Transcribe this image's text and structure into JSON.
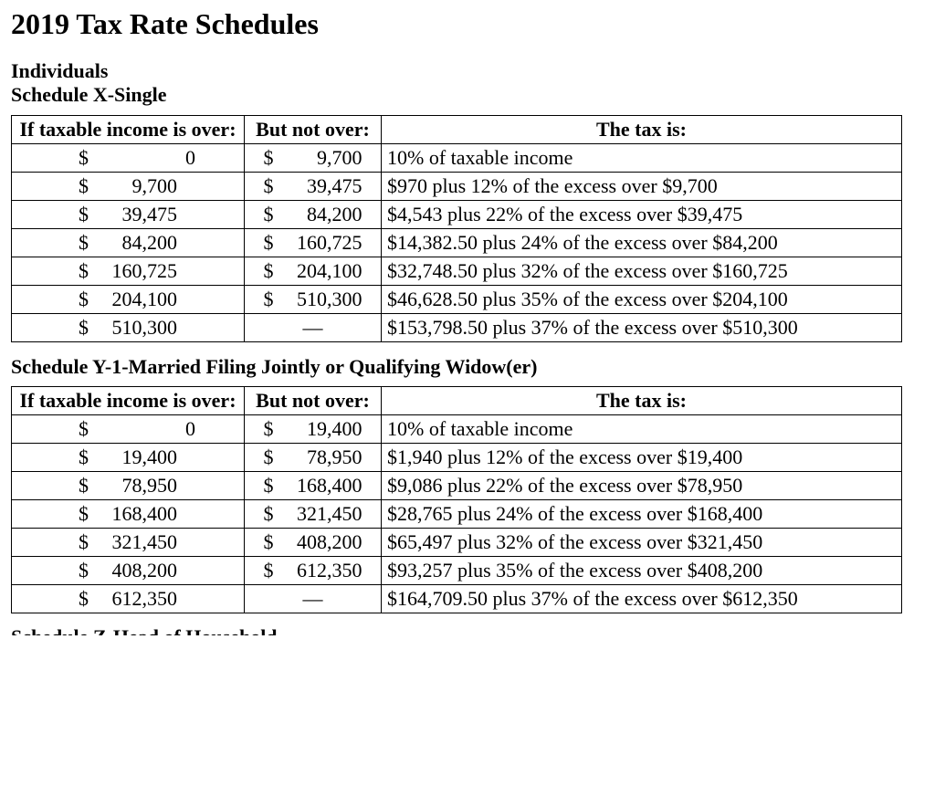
{
  "title": "2019 Tax Rate Schedules",
  "section1": {
    "line1": "Individuals",
    "line2": "Schedule X-Single"
  },
  "headers": {
    "over": "If taxable income is over:",
    "notover": "But not over:",
    "tax": "The tax is:"
  },
  "tableX": {
    "rows": [
      {
        "over": "$         0",
        "notover": "$   9,700",
        "tax": "10% of taxable income"
      },
      {
        "over": "$   9,700",
        "notover": "$ 39,475",
        "tax": "$970 plus 12% of the excess over $9,700"
      },
      {
        "over": "$ 39,475",
        "notover": "$ 84,200",
        "tax": "$4,543 plus 22% of the excess over $39,475"
      },
      {
        "over": "$ 84,200",
        "notover": "$160,725",
        "tax": "$14,382.50 plus 24% of the excess over $84,200"
      },
      {
        "over": "$160,725",
        "notover": "$204,100",
        "tax": "$32,748.50 plus 32% of the excess over $160,725"
      },
      {
        "over": "$204,100",
        "notover": "$510,300",
        "tax": "$46,628.50 plus 35% of the excess over $204,100"
      },
      {
        "over": "$510,300",
        "notover": "—",
        "tax": "$153,798.50 plus 37% of the excess over $510,300"
      }
    ]
  },
  "section2": {
    "line": "Schedule Y-1-Married Filing Jointly or Qualifying Widow(er)"
  },
  "tableY1": {
    "rows": [
      {
        "over": "$         0",
        "notover": "$ 19,400",
        "tax": "10% of taxable income"
      },
      {
        "over": "$ 19,400",
        "notover": "$ 78,950",
        "tax": "$1,940 plus 12% of the excess over $19,400"
      },
      {
        "over": "$ 78,950",
        "notover": "$168,400",
        "tax": "$9,086 plus 22% of the excess over $78,950"
      },
      {
        "over": "$168,400",
        "notover": "$321,450",
        "tax": "$28,765 plus 24% of the excess over $168,400"
      },
      {
        "over": "$321,450",
        "notover": "$408,200",
        "tax": "$65,497 plus 32% of the excess over $321,450"
      },
      {
        "over": "$408,200",
        "notover": "$612,350",
        "tax": "$93,257 plus 35% of the excess over $408,200"
      },
      {
        "over": "$612,350",
        "notover": "—",
        "tax": "$164,709.50 plus 37% of the excess over $612,350"
      }
    ]
  },
  "cutoff": "Schedule Z-Head of Household"
}
